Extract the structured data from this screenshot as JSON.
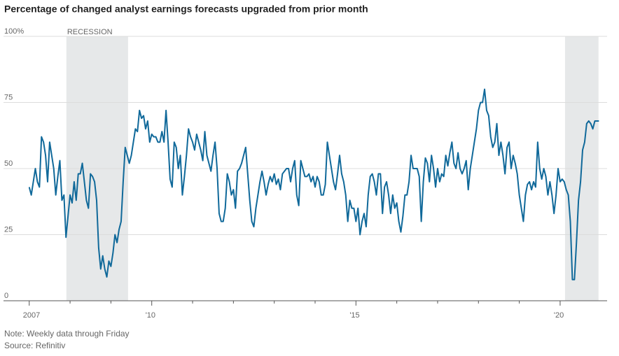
{
  "chart_data": {
    "type": "line",
    "title": "Percentage of changed analyst earnings forecasts upgraded from prior month",
    "note": "Note: Weekly data through Friday",
    "source": "Source: Refinitiv",
    "shaded_regions": [
      {
        "label": "RECESSION",
        "range": [
          2007.91,
          2009.42
        ]
      },
      {
        "range": [
          2020.12,
          2020.94
        ]
      }
    ],
    "xlim": [
      2006.37,
      2021.15
    ],
    "ylim": [
      0,
      100
    ],
    "yticks": [
      0,
      25,
      50,
      75,
      {
        "value": 100,
        "label": "100%"
      }
    ],
    "xticks": [
      {
        "value": 2007,
        "label": "2007"
      },
      {
        "value": 2010,
        "label": "'10"
      },
      {
        "value": 2015,
        "label": "'15"
      },
      {
        "value": 2020,
        "label": "'20"
      }
    ],
    "xminorticks": [
      2008,
      2009,
      2011,
      2012,
      2013,
      2014,
      2016,
      2017,
      2018,
      2019
    ],
    "grid": true,
    "color": "#10699a",
    "shade_color": "#e6e8e9",
    "x": [
      2007.0,
      2007.05,
      2007.1,
      2007.15,
      2007.2,
      2007.25,
      2007.3,
      2007.35,
      2007.4,
      2007.45,
      2007.5,
      2007.55,
      2007.6,
      2007.65,
      2007.7,
      2007.75,
      2007.8,
      2007.85,
      2007.9,
      2007.95,
      2008.0,
      2008.05,
      2008.1,
      2008.15,
      2008.2,
      2008.25,
      2008.3,
      2008.35,
      2008.4,
      2008.45,
      2008.5,
      2008.55,
      2008.6,
      2008.65,
      2008.7,
      2008.75,
      2008.8,
      2008.85,
      2008.9,
      2008.95,
      2009.0,
      2009.05,
      2009.1,
      2009.15,
      2009.2,
      2009.25,
      2009.3,
      2009.35,
      2009.4,
      2009.45,
      2009.5,
      2009.55,
      2009.6,
      2009.65,
      2009.7,
      2009.75,
      2009.8,
      2009.85,
      2009.9,
      2009.95,
      2010.0,
      2010.05,
      2010.1,
      2010.15,
      2010.2,
      2010.25,
      2010.3,
      2010.35,
      2010.4,
      2010.45,
      2010.5,
      2010.55,
      2010.6,
      2010.65,
      2010.7,
      2010.75,
      2010.8,
      2010.85,
      2010.9,
      2010.95,
      2011.0,
      2011.05,
      2011.1,
      2011.15,
      2011.2,
      2011.25,
      2011.3,
      2011.35,
      2011.4,
      2011.45,
      2011.5,
      2011.55,
      2011.6,
      2011.65,
      2011.7,
      2011.75,
      2011.8,
      2011.85,
      2011.9,
      2011.95,
      2012.0,
      2012.05,
      2012.1,
      2012.15,
      2012.2,
      2012.25,
      2012.3,
      2012.35,
      2012.4,
      2012.45,
      2012.5,
      2012.55,
      2012.6,
      2012.65,
      2012.7,
      2012.75,
      2012.8,
      2012.85,
      2012.9,
      2012.95,
      2013.0,
      2013.05,
      2013.1,
      2013.15,
      2013.2,
      2013.25,
      2013.3,
      2013.35,
      2013.4,
      2013.45,
      2013.5,
      2013.55,
      2013.6,
      2013.65,
      2013.7,
      2013.75,
      2013.8,
      2013.85,
      2013.9,
      2013.95,
      2014.0,
      2014.05,
      2014.1,
      2014.15,
      2014.2,
      2014.25,
      2014.3,
      2014.35,
      2014.4,
      2014.45,
      2014.5,
      2014.55,
      2014.6,
      2014.65,
      2014.7,
      2014.75,
      2014.8,
      2014.85,
      2014.9,
      2014.95,
      2015.0,
      2015.05,
      2015.1,
      2015.15,
      2015.2,
      2015.25,
      2015.3,
      2015.35,
      2015.4,
      2015.45,
      2015.5,
      2015.55,
      2015.6,
      2015.65,
      2015.7,
      2015.75,
      2015.8,
      2015.85,
      2015.9,
      2015.95,
      2016.0,
      2016.05,
      2016.1,
      2016.15,
      2016.2,
      2016.25,
      2016.3,
      2016.35,
      2016.4,
      2016.45,
      2016.5,
      2016.55,
      2016.6,
      2016.65,
      2016.7,
      2016.75,
      2016.8,
      2016.85,
      2016.9,
      2016.95,
      2017.0,
      2017.05,
      2017.1,
      2017.15,
      2017.2,
      2017.25,
      2017.3,
      2017.35,
      2017.4,
      2017.45,
      2017.5,
      2017.55,
      2017.6,
      2017.65,
      2017.7,
      2017.75,
      2017.8,
      2017.85,
      2017.9,
      2017.95,
      2018.0,
      2018.05,
      2018.1,
      2018.15,
      2018.2,
      2018.25,
      2018.3,
      2018.35,
      2018.4,
      2018.45,
      2018.5,
      2018.55,
      2018.6,
      2018.65,
      2018.7,
      2018.75,
      2018.8,
      2018.85,
      2018.9,
      2018.95,
      2019.0,
      2019.05,
      2019.1,
      2019.15,
      2019.2,
      2019.25,
      2019.3,
      2019.35,
      2019.4,
      2019.45,
      2019.5,
      2019.55,
      2019.6,
      2019.65,
      2019.7,
      2019.75,
      2019.8,
      2019.85,
      2019.9,
      2019.95,
      2020.0,
      2020.05,
      2020.1,
      2020.15,
      2020.2,
      2020.25,
      2020.3,
      2020.35,
      2020.4,
      2020.45,
      2020.5,
      2020.55,
      2020.6,
      2020.65,
      2020.7,
      2020.75,
      2020.8,
      2020.85,
      2020.9,
      2020.95
    ],
    "values": [
      43,
      40,
      45,
      50,
      45,
      43,
      62,
      60,
      55,
      45,
      60,
      55,
      50,
      40,
      47,
      53,
      38,
      40,
      24,
      32,
      40,
      37,
      45,
      38,
      48,
      48,
      52,
      45,
      38,
      35,
      48,
      47,
      45,
      38,
      20,
      12,
      17,
      12,
      9,
      15,
      13,
      18,
      25,
      22,
      27,
      30,
      45,
      58,
      55,
      52,
      55,
      60,
      65,
      64,
      72,
      69,
      70,
      65,
      68,
      60,
      63,
      62,
      62,
      60,
      60,
      64,
      60,
      72,
      60,
      46,
      43,
      60,
      58,
      50,
      55,
      40,
      47,
      55,
      65,
      62,
      60,
      57,
      63,
      60,
      57,
      53,
      64,
      55,
      52,
      49,
      55,
      60,
      50,
      33,
      30,
      30,
      35,
      48,
      45,
      40,
      42,
      35,
      49,
      50,
      52,
      55,
      58,
      48,
      38,
      30,
      28,
      35,
      40,
      45,
      49,
      45,
      40,
      44,
      47,
      45,
      48,
      44,
      46,
      42,
      48,
      49,
      50,
      50,
      45,
      50,
      53,
      40,
      36,
      53,
      50,
      47,
      47,
      48,
      45,
      47,
      43,
      47,
      45,
      40,
      40,
      44,
      60,
      55,
      50,
      45,
      42,
      48,
      55,
      48,
      45,
      40,
      30,
      38,
      35,
      35,
      30,
      35,
      25,
      30,
      33,
      28,
      40,
      47,
      48,
      45,
      40,
      48,
      48,
      33,
      43,
      45,
      40,
      33,
      40,
      35,
      37,
      30,
      26,
      32,
      40,
      40,
      45,
      55,
      50,
      50,
      50,
      47,
      30,
      45,
      54,
      52,
      45,
      55,
      50,
      43,
      50,
      45,
      48,
      47,
      55,
      51,
      56,
      60,
      52,
      50,
      56,
      50,
      48,
      50,
      53,
      42,
      50,
      55,
      60,
      65,
      72,
      75,
      75,
      80,
      72,
      70,
      62,
      58,
      60,
      67,
      55,
      60,
      55,
      48,
      58,
      60,
      50,
      55,
      52,
      48,
      40,
      35,
      30,
      40,
      44,
      45,
      42,
      45,
      43,
      60,
      50,
      46,
      50,
      47,
      40,
      45,
      40,
      33,
      40,
      50,
      45,
      46,
      45,
      42,
      40,
      30,
      8,
      8,
      22,
      38,
      45,
      57,
      60,
      67,
      68,
      67,
      65,
      68,
      68,
      68
    ]
  }
}
